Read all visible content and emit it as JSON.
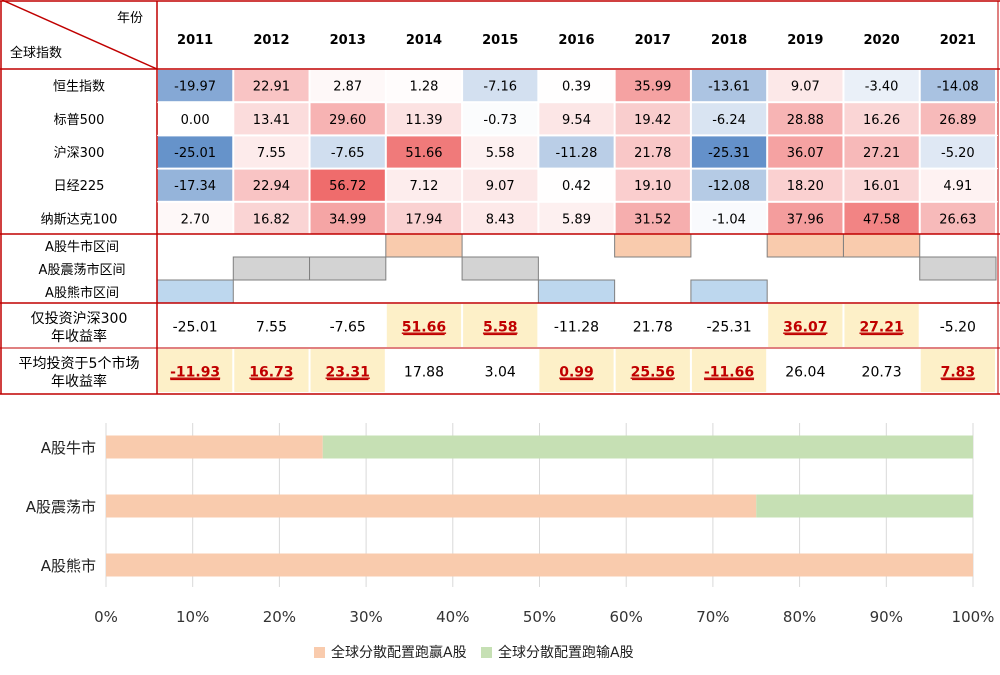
{
  "table": {
    "corner_top": "年份",
    "corner_bottom": "全球指数",
    "years": [
      "2011",
      "2012",
      "2013",
      "2014",
      "2015",
      "2016",
      "2017",
      "2018",
      "2019",
      "2020",
      "2021"
    ],
    "indices": [
      {
        "name": "恒生指数",
        "values": [
          -19.97,
          22.91,
          2.87,
          1.28,
          -7.16,
          0.39,
          35.99,
          -13.61,
          9.07,
          -3.4,
          -14.08
        ]
      },
      {
        "name": "标普500",
        "values": [
          0.0,
          13.41,
          29.6,
          11.39,
          -0.73,
          9.54,
          19.42,
          -6.24,
          28.88,
          16.26,
          26.89
        ]
      },
      {
        "name": "沪深300",
        "values": [
          -25.01,
          7.55,
          -7.65,
          51.66,
          5.58,
          -11.28,
          21.78,
          -25.31,
          36.07,
          27.21,
          -5.2
        ]
      },
      {
        "name": "日经225",
        "values": [
          -17.34,
          22.94,
          56.72,
          7.12,
          9.07,
          0.42,
          19.1,
          -12.08,
          18.2,
          16.01,
          4.91
        ]
      },
      {
        "name": "纳斯达克100",
        "values": [
          2.7,
          16.82,
          34.99,
          17.94,
          8.43,
          5.89,
          31.52,
          -1.04,
          37.96,
          47.58,
          26.63
        ]
      }
    ],
    "regime_labels": [
      "A股牛市区间",
      "A股震荡市区间",
      "A股熊市区间"
    ],
    "regimes": [
      "bear",
      "range",
      "range",
      "bull",
      "range",
      "bear",
      "bull",
      "bear",
      "bull",
      "bull",
      "range"
    ],
    "regime_colors": {
      "bull": "#f9cbad",
      "range": "#d3d3d3",
      "bear": "#bdd7ee"
    },
    "compare_rows": [
      {
        "label_line1": "仅投资沪深300",
        "label_line2": "年收益率",
        "values": [
          "-25.01",
          "7.55",
          "-7.65",
          "51.66",
          "5.58",
          "-11.28",
          "21.78",
          "-25.31",
          "36.07",
          "27.21",
          "-5.20"
        ],
        "highlight": [
          false,
          false,
          false,
          true,
          true,
          false,
          false,
          false,
          true,
          true,
          false
        ]
      },
      {
        "label_line1": "平均投资于5个市场",
        "label_line2": "年收益率",
        "values": [
          "-11.93",
          "16.73",
          "23.31",
          "17.88",
          "3.04",
          "0.99",
          "25.56",
          "-11.66",
          "26.04",
          "20.73",
          "7.83"
        ],
        "highlight": [
          true,
          true,
          true,
          false,
          false,
          true,
          true,
          true,
          false,
          false,
          true
        ]
      }
    ],
    "highlight_bg": "#fdf0c8",
    "highlight_text": "#c00000"
  },
  "chart_data": {
    "type": "bar",
    "orientation": "horizontal",
    "stacked": true,
    "categories": [
      "A股牛市",
      "A股震荡市",
      "A股熊市"
    ],
    "series": [
      {
        "name": "全球分散配置跑赢A股",
        "values": [
          25,
          75,
          100
        ],
        "color": "#f9cbad"
      },
      {
        "name": "全球分散配置跑输A股",
        "values": [
          75,
          25,
          0
        ],
        "color": "#c6e0b4"
      }
    ],
    "xlim": [
      0,
      100
    ],
    "xticks": [
      "0%",
      "10%",
      "20%",
      "30%",
      "40%",
      "50%",
      "60%",
      "70%",
      "80%",
      "90%",
      "100%"
    ],
    "grid": true,
    "legend": "bottom"
  }
}
